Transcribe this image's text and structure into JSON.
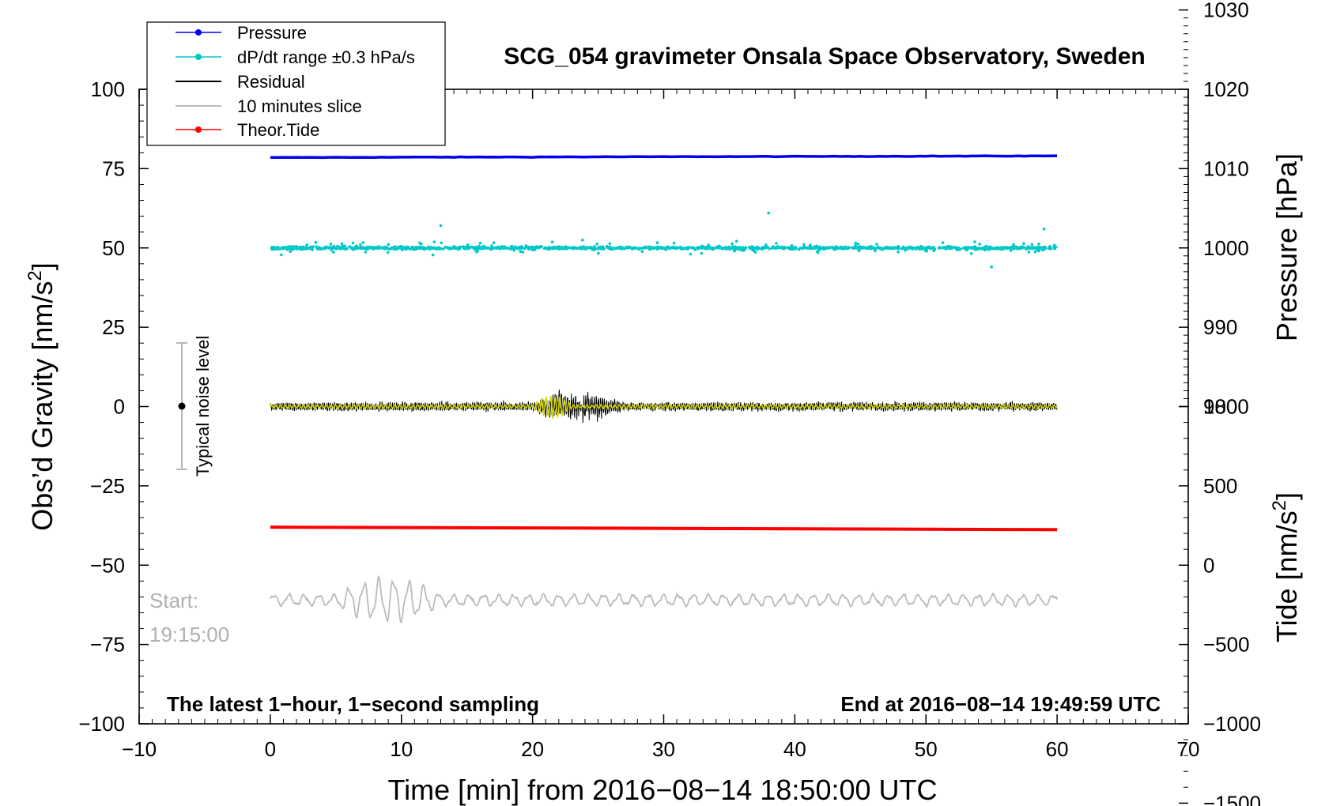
{
  "chart_data": {
    "type": "line",
    "title": "SCG_054 gravimeter Onsala Space Observatory, Sweden",
    "xlabel": "Time [min] from 2016−08−14 18:50:00 UTC",
    "ylabel_left": "Obs’d Gravity [nm/s",
    "ylabel_left_sup": "2",
    "ylabel_left_close": "]",
    "ylabel_right_pressure": "Pressure [hPa]",
    "ylabel_right_tide": "Tide [nm/s",
    "ylabel_right_tide_sup": "2",
    "ylabel_right_tide_close": "]",
    "xlim": [
      -10,
      70
    ],
    "ylim": [
      -100,
      100
    ],
    "pressure_axis": {
      "range": [
        980,
        1030
      ],
      "gravity_at_1000": 50,
      "nm_per_hPa": 2.5
    },
    "tide_axis": {
      "range": [
        -1500,
        1000
      ],
      "gravity_at_0": -50,
      "nm_per_unit": 0.05
    },
    "x_ticks": [
      "−10",
      "0",
      "10",
      "20",
      "30",
      "40",
      "50",
      "60",
      "70"
    ],
    "x_tick_values": [
      -10,
      0,
      10,
      20,
      30,
      40,
      50,
      60,
      70
    ],
    "y_ticks_left": [
      "−100",
      "−75",
      "−50",
      "−25",
      "0",
      "25",
      "50",
      "75",
      "100"
    ],
    "y_tick_values_left": [
      -100,
      -75,
      -50,
      -25,
      0,
      25,
      50,
      75,
      100
    ],
    "y_ticks_pressure": [
      "980",
      "990",
      "1000",
      "1010",
      "1020",
      "1030"
    ],
    "y_tick_values_pressure": [
      980,
      990,
      1000,
      1010,
      1020,
      1030
    ],
    "y_ticks_tide": [
      "−1500",
      "−1000",
      "−500",
      "0",
      "500",
      "1000"
    ],
    "y_tick_values_tide": [
      -1500,
      -1000,
      -500,
      0,
      500,
      1000
    ],
    "legend": {
      "position": "top-left",
      "entries": [
        {
          "label": "Pressure",
          "color": "#0000ee",
          "marker": true
        },
        {
          "label": "dP/dt range ±0.3 hPa/s",
          "color": "#00c8c8",
          "marker": true
        },
        {
          "label": "Residual",
          "color": "#000000",
          "marker": false
        },
        {
          "label": "10 minutes slice",
          "color": "#bbbbbb",
          "marker": false
        },
        {
          "label": "Theor.Tide",
          "color": "#ff0000",
          "marker": true
        }
      ]
    },
    "series": [
      {
        "name": "Pressure",
        "color": "#0000ee",
        "x_range": [
          0,
          60
        ],
        "start_value": 78.5,
        "end_value": 79.0
      },
      {
        "name": "dP/dt range ±0.3 hPa/s",
        "color": "#00c8c8",
        "x_range": [
          0,
          60
        ],
        "center_value": 50,
        "spread": 2
      },
      {
        "name": "Residual",
        "color": "#000000",
        "x_range": [
          0,
          60
        ],
        "center_value": 0,
        "amplitude": 4,
        "burst_amplitude": 8,
        "burst_x_range": [
          20,
          27
        ]
      },
      {
        "name": "Residual smoothed",
        "color": "#d8d800",
        "x_range": [
          0,
          60
        ],
        "center_value": 0,
        "amplitude": 2,
        "burst_amplitude": 5
      },
      {
        "name": "Theor.Tide",
        "color": "#ff0000",
        "x_range": [
          0,
          60
        ],
        "start_value": -38,
        "end_value": -38.8
      },
      {
        "name": "10 minutes slice",
        "color": "#bbbbbb",
        "x_range": [
          0,
          60
        ],
        "center_value": -61,
        "amplitude": 4,
        "burst_amplitude": 8,
        "burst_x_range": [
          5,
          13
        ]
      }
    ],
    "noise_bar": {
      "label": "Typical noise level",
      "x": -7,
      "center": 0,
      "half_range": 20
    },
    "annotations": {
      "start_label": "Start:",
      "start_time": "19:15:00",
      "bottom_left": "The latest 1−hour, 1−second sampling",
      "bottom_right": "End at 2016−08−14 19:49:59 UTC"
    },
    "colors": {
      "text_gray": "#b0b0b0",
      "noise_bar": "#b8b8b8"
    }
  }
}
